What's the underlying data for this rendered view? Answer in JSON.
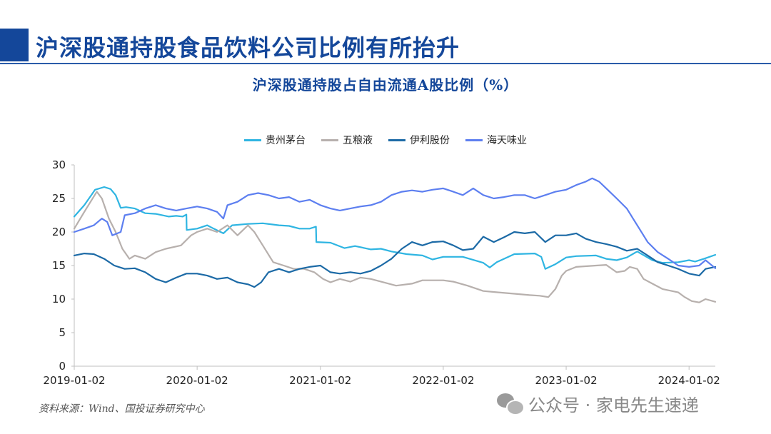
{
  "page_title": "沪深股通持股食品饮料公司比例有所抬升",
  "source_note": "资料来源：Wind、国投证券研究中心",
  "watermark": {
    "icon": "wechat-icon",
    "text": "公众号 · 家电先生速递"
  },
  "colors": {
    "brand": "#14479a",
    "grid": "#bfbfbf"
  },
  "chart_data": {
    "type": "line",
    "title": "沪深股通持股占自由流通A股比例（%）",
    "xlabel": "",
    "ylabel": "",
    "x_range": [
      "2019-01-02",
      "2024-03-20"
    ],
    "ylim": [
      0,
      30
    ],
    "yticks": [
      0,
      5,
      10,
      15,
      20,
      25,
      30
    ],
    "xticks": [
      "2019-01-02",
      "2020-01-02",
      "2021-01-02",
      "2022-01-02",
      "2023-01-02",
      "2024-01-02"
    ],
    "grid": false,
    "legend": "top-center",
    "series": [
      {
        "name": "贵州茅台",
        "color": "#2fb5e2",
        "points": [
          [
            "2019-01-02",
            22.3
          ],
          [
            "2019-02-01",
            24.0
          ],
          [
            "2019-03-05",
            26.3
          ],
          [
            "2019-04-01",
            26.7
          ],
          [
            "2019-04-20",
            26.4
          ],
          [
            "2019-05-05",
            25.5
          ],
          [
            "2019-05-20",
            23.6
          ],
          [
            "2019-06-05",
            23.7
          ],
          [
            "2019-07-01",
            23.5
          ],
          [
            "2019-08-01",
            22.8
          ],
          [
            "2019-09-01",
            22.7
          ],
          [
            "2019-10-10",
            22.3
          ],
          [
            "2019-11-01",
            22.4
          ],
          [
            "2019-11-20",
            22.3
          ],
          [
            "2019-12-01",
            22.6
          ],
          [
            "2019-12-02",
            20.3
          ],
          [
            "2020-01-02",
            20.5
          ],
          [
            "2020-02-01",
            21.0
          ],
          [
            "2020-02-20",
            20.5
          ],
          [
            "2020-03-20",
            19.8
          ],
          [
            "2020-04-15",
            21.0
          ],
          [
            "2020-06-01",
            21.2
          ],
          [
            "2020-07-15",
            21.3
          ],
          [
            "2020-09-01",
            21.0
          ],
          [
            "2020-10-01",
            20.9
          ],
          [
            "2020-11-01",
            20.5
          ],
          [
            "2020-12-01",
            20.5
          ],
          [
            "2020-12-20",
            20.8
          ],
          [
            "2020-12-21",
            18.5
          ],
          [
            "2021-02-01",
            18.4
          ],
          [
            "2021-03-15",
            17.6
          ],
          [
            "2021-04-15",
            17.9
          ],
          [
            "2021-06-01",
            17.4
          ],
          [
            "2021-07-01",
            17.5
          ],
          [
            "2021-08-01",
            17.1
          ],
          [
            "2021-09-15",
            16.7
          ],
          [
            "2021-11-01",
            16.5
          ],
          [
            "2021-12-01",
            15.9
          ],
          [
            "2022-01-02",
            16.3
          ],
          [
            "2022-03-01",
            16.3
          ],
          [
            "2022-05-01",
            15.4
          ],
          [
            "2022-05-20",
            14.7
          ],
          [
            "2022-06-10",
            15.5
          ],
          [
            "2022-08-01",
            16.7
          ],
          [
            "2022-10-01",
            16.8
          ],
          [
            "2022-10-20",
            16.3
          ],
          [
            "2022-11-01",
            14.5
          ],
          [
            "2022-12-01",
            15.2
          ],
          [
            "2023-01-02",
            16.2
          ],
          [
            "2023-02-01",
            16.4
          ],
          [
            "2023-04-01",
            16.5
          ],
          [
            "2023-05-01",
            16.0
          ],
          [
            "2023-06-01",
            15.8
          ],
          [
            "2023-07-01",
            16.2
          ],
          [
            "2023-08-01",
            17.1
          ],
          [
            "2023-09-15",
            15.8
          ],
          [
            "2023-10-15",
            15.4
          ],
          [
            "2023-12-01",
            15.5
          ],
          [
            "2024-01-02",
            15.8
          ],
          [
            "2024-01-20",
            15.6
          ],
          [
            "2024-02-15",
            16.0
          ],
          [
            "2024-03-20",
            16.6
          ]
        ]
      },
      {
        "name": "五粮液",
        "color": "#b7b0ad",
        "points": [
          [
            "2019-01-02",
            20.5
          ],
          [
            "2019-02-01",
            23.0
          ],
          [
            "2019-03-10",
            26.0
          ],
          [
            "2019-03-25",
            25.0
          ],
          [
            "2019-04-15",
            22.0
          ],
          [
            "2019-05-05",
            20.0
          ],
          [
            "2019-05-25",
            17.5
          ],
          [
            "2019-06-15",
            16.0
          ],
          [
            "2019-07-01",
            16.5
          ],
          [
            "2019-08-01",
            16.0
          ],
          [
            "2019-09-01",
            17.0
          ],
          [
            "2019-10-01",
            17.5
          ],
          [
            "2019-11-15",
            18.0
          ],
          [
            "2019-12-15",
            19.5
          ],
          [
            "2020-01-02",
            20.0
          ],
          [
            "2020-02-01",
            20.5
          ],
          [
            "2020-03-01",
            20.0
          ],
          [
            "2020-04-01",
            21.0
          ],
          [
            "2020-05-01",
            19.5
          ],
          [
            "2020-06-01",
            21.0
          ],
          [
            "2020-06-20",
            20.0
          ],
          [
            "2020-07-15",
            18.0
          ],
          [
            "2020-08-15",
            15.5
          ],
          [
            "2020-09-15",
            15.0
          ],
          [
            "2020-10-15",
            14.5
          ],
          [
            "2020-11-15",
            14.5
          ],
          [
            "2020-12-15",
            14.0
          ],
          [
            "2021-01-10",
            13.0
          ],
          [
            "2021-02-01",
            12.5
          ],
          [
            "2021-03-01",
            13.0
          ],
          [
            "2021-04-01",
            12.6
          ],
          [
            "2021-05-01",
            13.2
          ],
          [
            "2021-06-01",
            13.0
          ],
          [
            "2021-07-01",
            12.6
          ],
          [
            "2021-08-15",
            12.0
          ],
          [
            "2021-10-01",
            12.3
          ],
          [
            "2021-11-01",
            12.8
          ],
          [
            "2021-12-01",
            12.8
          ],
          [
            "2022-01-02",
            12.8
          ],
          [
            "2022-02-01",
            12.6
          ],
          [
            "2022-03-15",
            12.0
          ],
          [
            "2022-05-01",
            11.2
          ],
          [
            "2022-06-15",
            11.0
          ],
          [
            "2022-08-01",
            10.8
          ],
          [
            "2022-09-15",
            10.6
          ],
          [
            "2022-10-15",
            10.5
          ],
          [
            "2022-11-10",
            10.3
          ],
          [
            "2022-12-01",
            11.5
          ],
          [
            "2022-12-20",
            13.5
          ],
          [
            "2023-01-02",
            14.2
          ],
          [
            "2023-02-01",
            14.8
          ],
          [
            "2023-04-01",
            15.0
          ],
          [
            "2023-05-01",
            15.1
          ],
          [
            "2023-06-01",
            14.0
          ],
          [
            "2023-06-25",
            14.2
          ],
          [
            "2023-07-10",
            14.8
          ],
          [
            "2023-08-01",
            14.5
          ],
          [
            "2023-08-20",
            13.0
          ],
          [
            "2023-09-15",
            12.3
          ],
          [
            "2023-10-15",
            11.5
          ],
          [
            "2023-12-01",
            11.0
          ],
          [
            "2023-12-20",
            10.3
          ],
          [
            "2024-01-10",
            9.7
          ],
          [
            "2024-02-01",
            9.5
          ],
          [
            "2024-02-20",
            10.0
          ],
          [
            "2024-03-20",
            9.6
          ]
        ]
      },
      {
        "name": "伊利股份",
        "color": "#1c6aa6",
        "points": [
          [
            "2019-01-02",
            16.5
          ],
          [
            "2019-02-01",
            16.8
          ],
          [
            "2019-03-01",
            16.7
          ],
          [
            "2019-04-01",
            16.0
          ],
          [
            "2019-05-01",
            15.0
          ],
          [
            "2019-06-01",
            14.5
          ],
          [
            "2019-07-01",
            14.6
          ],
          [
            "2019-08-01",
            14.0
          ],
          [
            "2019-09-01",
            13.0
          ],
          [
            "2019-10-01",
            12.5
          ],
          [
            "2019-11-01",
            13.2
          ],
          [
            "2019-12-01",
            13.8
          ],
          [
            "2020-01-02",
            13.8
          ],
          [
            "2020-02-01",
            13.5
          ],
          [
            "2020-03-01",
            13.0
          ],
          [
            "2020-04-01",
            13.2
          ],
          [
            "2020-05-01",
            12.5
          ],
          [
            "2020-06-01",
            12.2
          ],
          [
            "2020-06-20",
            11.8
          ],
          [
            "2020-07-10",
            12.5
          ],
          [
            "2020-08-01",
            14.0
          ],
          [
            "2020-09-01",
            14.5
          ],
          [
            "2020-10-01",
            14.0
          ],
          [
            "2020-11-01",
            14.5
          ],
          [
            "2020-12-01",
            14.8
          ],
          [
            "2021-01-02",
            15.0
          ],
          [
            "2021-02-01",
            14.0
          ],
          [
            "2021-03-01",
            13.8
          ],
          [
            "2021-04-01",
            14.0
          ],
          [
            "2021-05-01",
            13.8
          ],
          [
            "2021-06-01",
            14.2
          ],
          [
            "2021-07-01",
            15.0
          ],
          [
            "2021-08-01",
            16.0
          ],
          [
            "2021-09-01",
            17.5
          ],
          [
            "2021-10-01",
            18.5
          ],
          [
            "2021-11-01",
            18.0
          ],
          [
            "2021-12-01",
            18.5
          ],
          [
            "2022-01-02",
            18.6
          ],
          [
            "2022-02-01",
            18.0
          ],
          [
            "2022-03-01",
            17.3
          ],
          [
            "2022-04-01",
            17.5
          ],
          [
            "2022-05-01",
            19.3
          ],
          [
            "2022-06-01",
            18.5
          ],
          [
            "2022-07-01",
            19.2
          ],
          [
            "2022-08-01",
            20.0
          ],
          [
            "2022-09-01",
            19.8
          ],
          [
            "2022-10-01",
            20.0
          ],
          [
            "2022-11-01",
            18.5
          ],
          [
            "2022-12-01",
            19.5
          ],
          [
            "2023-01-02",
            19.5
          ],
          [
            "2023-02-01",
            19.8
          ],
          [
            "2023-03-01",
            19.0
          ],
          [
            "2023-04-01",
            18.5
          ],
          [
            "2023-05-01",
            18.2
          ],
          [
            "2023-06-01",
            17.8
          ],
          [
            "2023-07-01",
            17.2
          ],
          [
            "2023-08-01",
            17.5
          ],
          [
            "2023-09-01",
            16.5
          ],
          [
            "2023-10-01",
            15.5
          ],
          [
            "2023-11-01",
            15.0
          ],
          [
            "2023-12-01",
            14.5
          ],
          [
            "2024-01-02",
            13.8
          ],
          [
            "2024-02-01",
            13.5
          ],
          [
            "2024-02-20",
            14.5
          ],
          [
            "2024-03-20",
            14.8
          ]
        ]
      },
      {
        "name": "海天味业",
        "color": "#5d7ff0",
        "points": [
          [
            "2019-01-02",
            20.0
          ],
          [
            "2019-02-01",
            20.5
          ],
          [
            "2019-03-01",
            21.0
          ],
          [
            "2019-03-25",
            22.0
          ],
          [
            "2019-04-10",
            21.5
          ],
          [
            "2019-04-25",
            19.5
          ],
          [
            "2019-05-20",
            20.0
          ],
          [
            "2019-06-01",
            22.5
          ],
          [
            "2019-07-01",
            22.8
          ],
          [
            "2019-08-01",
            23.5
          ],
          [
            "2019-09-01",
            24.0
          ],
          [
            "2019-10-01",
            23.5
          ],
          [
            "2019-11-01",
            23.2
          ],
          [
            "2019-12-01",
            23.5
          ],
          [
            "2020-01-02",
            23.8
          ],
          [
            "2020-02-01",
            23.5
          ],
          [
            "2020-03-01",
            23.0
          ],
          [
            "2020-03-20",
            22.0
          ],
          [
            "2020-04-01",
            24.0
          ],
          [
            "2020-05-01",
            24.5
          ],
          [
            "2020-06-01",
            25.5
          ],
          [
            "2020-07-01",
            25.8
          ],
          [
            "2020-08-01",
            25.5
          ],
          [
            "2020-09-01",
            25.0
          ],
          [
            "2020-10-01",
            25.2
          ],
          [
            "2020-11-01",
            24.5
          ],
          [
            "2020-12-01",
            24.8
          ],
          [
            "2021-01-02",
            24.0
          ],
          [
            "2021-02-01",
            23.5
          ],
          [
            "2021-03-01",
            23.2
          ],
          [
            "2021-04-01",
            23.5
          ],
          [
            "2021-05-01",
            23.8
          ],
          [
            "2021-06-01",
            24.0
          ],
          [
            "2021-07-01",
            24.5
          ],
          [
            "2021-08-01",
            25.5
          ],
          [
            "2021-09-01",
            26.0
          ],
          [
            "2021-10-01",
            26.2
          ],
          [
            "2021-11-01",
            26.0
          ],
          [
            "2021-12-01",
            26.3
          ],
          [
            "2022-01-02",
            26.5
          ],
          [
            "2022-02-01",
            26.0
          ],
          [
            "2022-03-01",
            25.5
          ],
          [
            "2022-04-01",
            26.5
          ],
          [
            "2022-05-01",
            25.5
          ],
          [
            "2022-06-01",
            25.0
          ],
          [
            "2022-07-01",
            25.2
          ],
          [
            "2022-08-01",
            25.5
          ],
          [
            "2022-09-01",
            25.5
          ],
          [
            "2022-10-01",
            25.0
          ],
          [
            "2022-11-01",
            25.5
          ],
          [
            "2022-12-01",
            26.0
          ],
          [
            "2023-01-02",
            26.3
          ],
          [
            "2023-02-01",
            27.0
          ],
          [
            "2023-03-01",
            27.5
          ],
          [
            "2023-03-20",
            28.0
          ],
          [
            "2023-04-10",
            27.5
          ],
          [
            "2023-05-01",
            26.5
          ],
          [
            "2023-06-01",
            25.0
          ],
          [
            "2023-07-01",
            23.5
          ],
          [
            "2023-08-01",
            21.0
          ],
          [
            "2023-09-01",
            18.5
          ],
          [
            "2023-10-01",
            17.0
          ],
          [
            "2023-11-01",
            16.0
          ],
          [
            "2023-12-01",
            15.0
          ],
          [
            "2024-01-02",
            14.8
          ],
          [
            "2024-02-01",
            15.0
          ],
          [
            "2024-02-20",
            15.8
          ],
          [
            "2024-03-20",
            14.6
          ]
        ]
      }
    ]
  }
}
